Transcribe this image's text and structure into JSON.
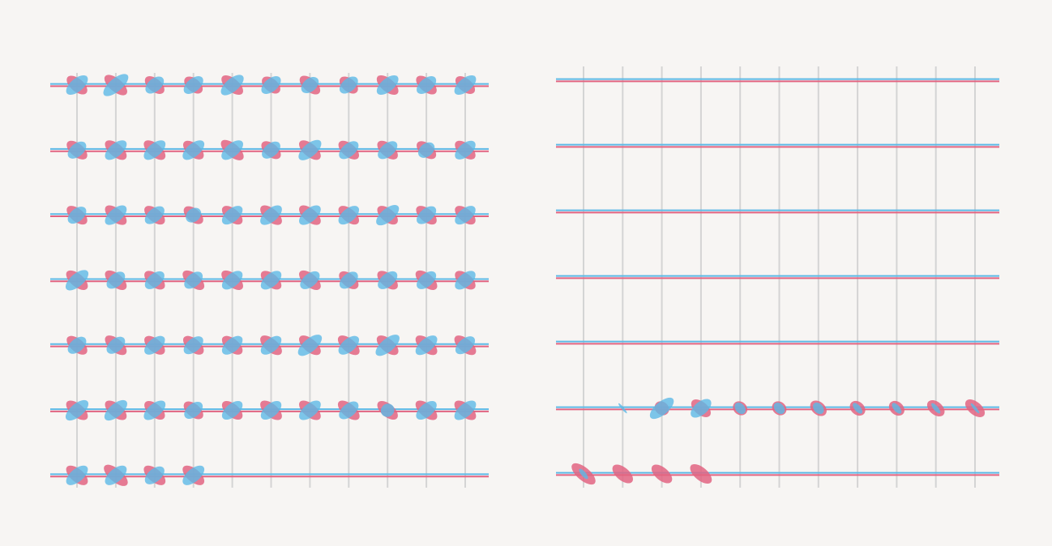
{
  "colors": {
    "background": "#f7f5f3",
    "grid": "#d4d4d4",
    "red": "#e26481",
    "blue": "#5db9e6",
    "overlap": "#6a9fd8"
  },
  "panels": [
    {
      "id": "left",
      "columns": 11,
      "rows": 7,
      "glyphs": [
        [
          [
            0.8,
            0.85
          ],
          [
            0.9,
            1.0
          ],
          [
            0.75,
            0.7
          ],
          [
            0.7,
            0.75
          ],
          [
            0.85,
            0.9
          ],
          [
            0.7,
            0.75
          ],
          [
            0.8,
            0.65
          ],
          [
            0.7,
            0.7
          ],
          [
            0.85,
            0.85
          ],
          [
            0.8,
            0.75
          ],
          [
            0.75,
            0.85
          ]
        ],
        [
          [
            0.8,
            0.7
          ],
          [
            0.85,
            0.85
          ],
          [
            0.85,
            0.85
          ],
          [
            0.8,
            0.85
          ],
          [
            0.9,
            0.85
          ],
          [
            0.75,
            0.7
          ],
          [
            0.85,
            0.9
          ],
          [
            0.8,
            0.75
          ],
          [
            0.8,
            0.75
          ],
          [
            0.75,
            0.6
          ],
          [
            0.8,
            0.8
          ]
        ],
        [
          [
            0.8,
            0.7
          ],
          [
            0.85,
            0.85
          ],
          [
            0.8,
            0.75
          ],
          [
            0.75,
            0.55
          ],
          [
            0.8,
            0.8
          ],
          [
            0.85,
            0.85
          ],
          [
            0.85,
            0.85
          ],
          [
            0.8,
            0.8
          ],
          [
            0.8,
            0.9
          ],
          [
            0.8,
            0.75
          ],
          [
            0.8,
            0.8
          ]
        ],
        [
          [
            0.85,
            0.9
          ],
          [
            0.85,
            0.7
          ],
          [
            0.8,
            0.75
          ],
          [
            0.85,
            0.7
          ],
          [
            0.85,
            0.8
          ],
          [
            0.8,
            0.8
          ],
          [
            0.85,
            0.75
          ],
          [
            0.75,
            0.7
          ],
          [
            0.8,
            0.75
          ],
          [
            0.85,
            0.75
          ],
          [
            0.8,
            0.8
          ]
        ],
        [
          [
            0.8,
            0.7
          ],
          [
            0.85,
            0.7
          ],
          [
            0.8,
            0.8
          ],
          [
            0.8,
            0.75
          ],
          [
            0.8,
            0.8
          ],
          [
            0.85,
            0.8
          ],
          [
            0.85,
            0.95
          ],
          [
            0.85,
            0.8
          ],
          [
            0.85,
            0.95
          ],
          [
            0.85,
            0.85
          ],
          [
            0.85,
            0.75
          ]
        ],
        [
          [
            0.85,
            0.9
          ],
          [
            0.85,
            0.9
          ],
          [
            0.8,
            0.85
          ],
          [
            0.75,
            0.7
          ],
          [
            0.8,
            0.8
          ],
          [
            0.85,
            0.8
          ],
          [
            0.85,
            0.85
          ],
          [
            0.85,
            0.75
          ],
          [
            0.8,
            0.45
          ],
          [
            0.85,
            0.8
          ],
          [
            0.85,
            0.85
          ]
        ],
        [
          [
            0.85,
            0.85
          ],
          [
            0.95,
            0.85
          ],
          [
            0.85,
            0.75
          ],
          [
            0.85,
            0.85
          ]
        ]
      ]
    },
    {
      "id": "right",
      "columns": 11,
      "rows": 7,
      "glyphs": [
        [],
        [],
        [],
        [],
        [],
        [
          [
            0,
            0
          ],
          [
            0,
            0.08
          ],
          [
            0.5,
            0.95
          ],
          [
            0.75,
            0.8
          ],
          [
            0.5,
            0.3
          ],
          [
            0.5,
            0.3
          ],
          [
            0.6,
            0.3
          ],
          [
            0.55,
            0.2
          ],
          [
            0.55,
            0.2
          ],
          [
            0.65,
            0.15
          ],
          [
            0.75,
            0.1
          ]
        ],
        [
          [
            0.95,
            0.15
          ],
          [
            0.8,
            0
          ],
          [
            0.8,
            0
          ],
          [
            0.85,
            0
          ]
        ]
      ]
    }
  ]
}
